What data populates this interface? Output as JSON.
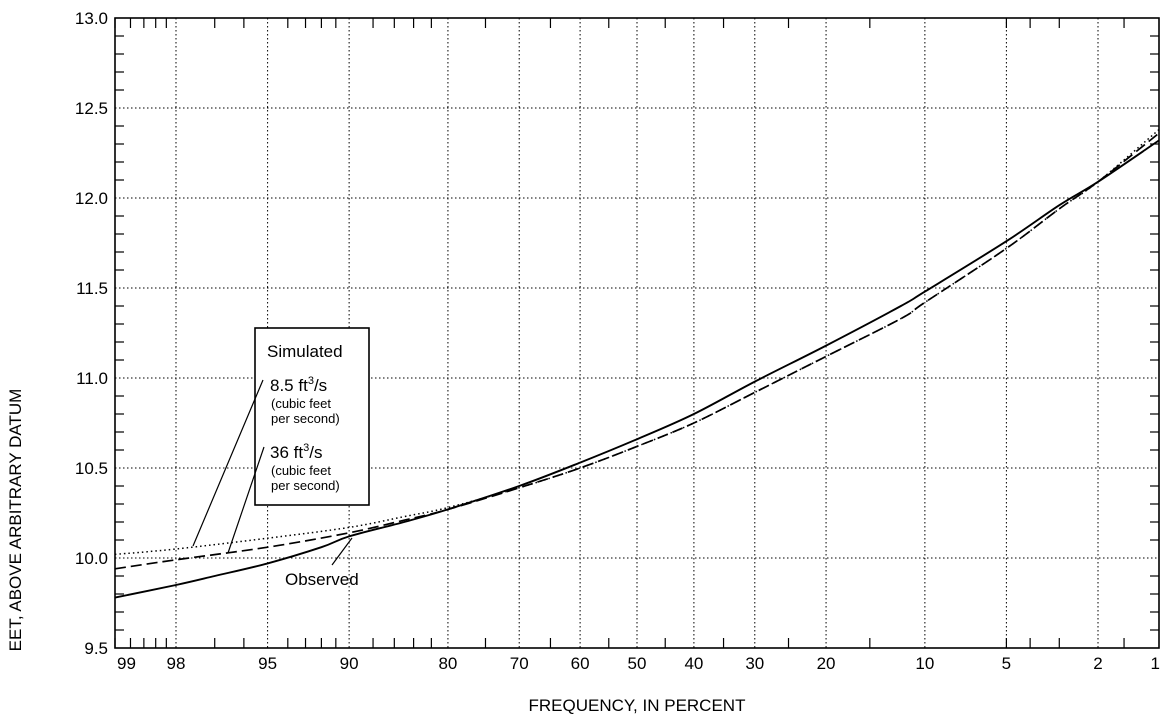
{
  "chart_data": {
    "type": "line",
    "title": "",
    "xlabel": "FREQUENCY, IN PERCENT",
    "ylabel": "EET, ABOVE ARBITRARY DATUM",
    "x_scale": "normal-probability",
    "x_reversed": true,
    "xlim": [
      99,
      1
    ],
    "ylim": [
      9.5,
      13.0
    ],
    "x_ticks": [
      99,
      98,
      95,
      90,
      80,
      70,
      60,
      50,
      40,
      30,
      20,
      10,
      5,
      2,
      1
    ],
    "x_tick_labels": [
      "99",
      "98",
      "95",
      "90",
      "80",
      "70",
      "60",
      "50",
      "40",
      "30",
      "20",
      "10",
      "5",
      "2",
      "1"
    ],
    "y_ticks": [
      9.5,
      10.0,
      10.5,
      11.0,
      11.5,
      12.0,
      12.5,
      13.0
    ],
    "y_tick_labels": [
      "9.5",
      "10.0",
      "10.5",
      "11.0",
      "11.5",
      "12.0",
      "12.5",
      "13.0"
    ],
    "grid": true,
    "series": [
      {
        "name": "Observed",
        "style": "solid",
        "x": [
          99,
          98,
          97,
          95,
          92,
          90,
          85,
          80,
          70,
          60,
          50,
          40,
          30,
          20,
          12,
          10,
          5,
          3,
          2,
          1
        ],
        "y": [
          9.78,
          9.85,
          9.9,
          9.97,
          10.06,
          10.12,
          10.2,
          10.27,
          10.4,
          10.53,
          10.66,
          10.8,
          10.98,
          11.18,
          11.4,
          11.48,
          11.76,
          11.96,
          12.09,
          12.32
        ]
      },
      {
        "name": "8.5 ft3/s",
        "style": "dotted",
        "x": [
          99,
          98,
          95,
          90,
          85,
          80,
          70,
          60,
          50,
          40,
          30,
          20,
          12,
          10,
          5,
          3,
          2,
          1
        ],
        "y": [
          10.02,
          10.05,
          10.11,
          10.17,
          10.23,
          10.28,
          10.39,
          10.5,
          10.62,
          10.75,
          10.92,
          11.12,
          11.33,
          11.42,
          11.72,
          11.94,
          12.09,
          12.38
        ]
      },
      {
        "name": "36 ft3/s",
        "style": "dashed",
        "x": [
          99,
          98,
          95,
          90,
          85,
          80,
          70,
          60,
          50,
          40,
          30,
          20,
          12,
          10,
          5,
          3,
          2,
          1
        ],
        "y": [
          9.94,
          9.99,
          10.06,
          10.14,
          10.21,
          10.27,
          10.39,
          10.5,
          10.62,
          10.75,
          10.92,
          11.12,
          11.33,
          11.42,
          11.72,
          11.94,
          12.09,
          12.36
        ]
      }
    ],
    "legend": {
      "heading": "Simulated",
      "entries": [
        {
          "main": "8.5 ft",
          "sup": "3",
          "unit": "/s",
          "note1": "(cubic feet",
          "note2": "per second)"
        },
        {
          "main": "36 ft",
          "sup": "3",
          "unit": "/s",
          "note1": "(cubic feet",
          "note2": "per second)"
        }
      ],
      "placement": "left"
    },
    "annotations": [
      {
        "text": "Observed",
        "target_series": "Observed",
        "x": 89,
        "y": 10.12
      }
    ]
  }
}
